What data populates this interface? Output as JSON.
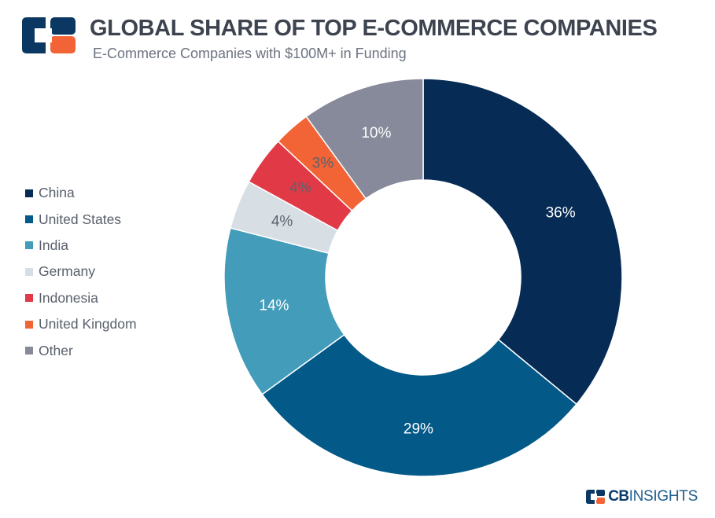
{
  "header": {
    "title": "GLOBAL SHARE OF TOP E-COMMERCE COMPANIES",
    "subtitle": "E-Commerce Companies with $100M+ in Funding",
    "logo_icon": "cb-insights-logo-icon"
  },
  "chart_data": {
    "type": "pie",
    "variant": "donut",
    "title": "GLOBAL SHARE OF TOP E-COMMERCE COMPANIES",
    "subtitle": "E-Commerce Companies with $100M+ in Funding",
    "legend_position": "left",
    "series": [
      {
        "name": "China",
        "value": 36,
        "label": "36%",
        "color": "#062b55",
        "label_color": "#ffffff"
      },
      {
        "name": "United States",
        "value": 29,
        "label": "29%",
        "color": "#035987",
        "label_color": "#ffffff"
      },
      {
        "name": "India",
        "value": 14,
        "label": "14%",
        "color": "#429cba",
        "label_color": "#ffffff"
      },
      {
        "name": "Germany",
        "value": 4,
        "label": "4%",
        "color": "#d8dfe4",
        "label_color": "#5b626d"
      },
      {
        "name": "Indonesia",
        "value": 4,
        "label": "4%",
        "color": "#e13a46",
        "label_color": "#5b626d"
      },
      {
        "name": "United Kingdom",
        "value": 3,
        "label": "3%",
        "color": "#f26335",
        "label_color": "#5b626d"
      },
      {
        "name": "Other",
        "value": 10,
        "label": "10%",
        "color": "#868a9a",
        "label_color": "#ffffff"
      }
    ]
  },
  "footer": {
    "brand_cb": "CB",
    "brand_insights": "INSIGHTS",
    "brand_icon": "cb-insights-mark-icon"
  }
}
